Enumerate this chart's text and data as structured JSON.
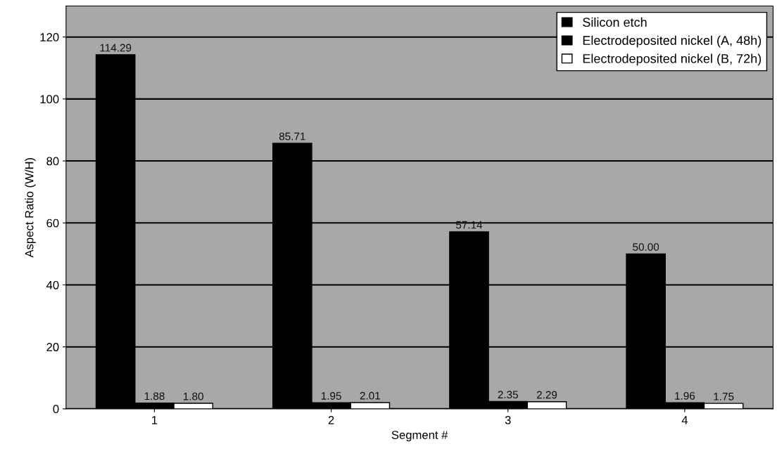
{
  "chart_data": {
    "type": "bar",
    "xlabel": "Segment #",
    "ylabel": "Aspect Ratio (W/H)",
    "categories": [
      "1",
      "2",
      "3",
      "4"
    ],
    "series": [
      {
        "name": "Silicon etch",
        "color": "#000000",
        "values": [
          114.29,
          85.71,
          57.14,
          50.0
        ],
        "value_labels": [
          "114.29",
          "85.71",
          "57.14",
          "50.00"
        ]
      },
      {
        "name": "Electrodeposited nickel (A, 48h)",
        "color": "#000000",
        "values": [
          1.88,
          1.95,
          2.35,
          1.96
        ],
        "value_labels": [
          "1.88",
          "1.95",
          "2.35",
          "1.96"
        ]
      },
      {
        "name": "Electrodeposited nickel (B, 72h)",
        "color": "#ffffff",
        "values": [
          1.8,
          2.01,
          2.29,
          1.75
        ],
        "value_labels": [
          "1.80",
          "2.01",
          "2.29",
          "1.75"
        ]
      }
    ],
    "ylim": [
      0,
      130
    ],
    "yticks": [
      0,
      20,
      40,
      60,
      80,
      100,
      120
    ],
    "grid": "y",
    "legend": "top right"
  }
}
